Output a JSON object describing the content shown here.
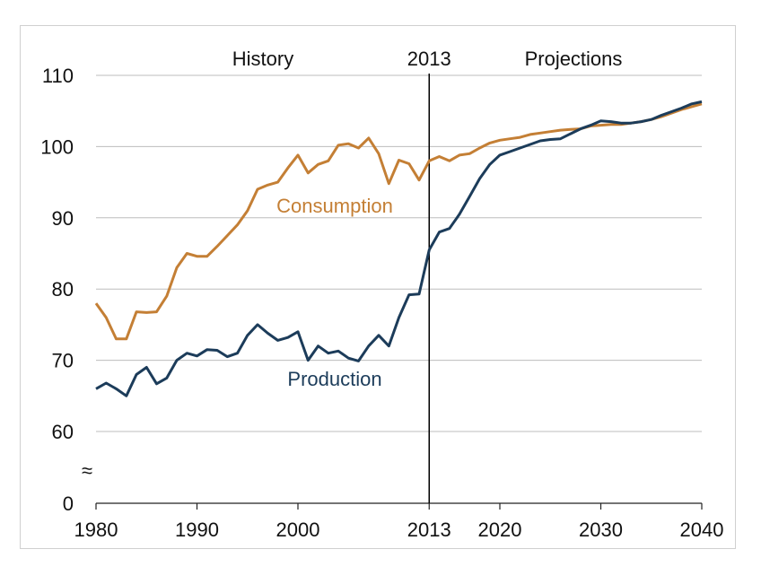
{
  "chart_data": {
    "type": "line",
    "title": "",
    "xlabel": "",
    "ylabel": "",
    "xlim": [
      1980,
      2040
    ],
    "yticks": [
      0,
      60,
      70,
      80,
      90,
      100,
      110
    ],
    "xticks": [
      "1980",
      "1990",
      "2000",
      "2013",
      "2020",
      "2030",
      "2040"
    ],
    "axis_break_symbol": "≈",
    "divider_year": 2013,
    "headers": {
      "history": "History",
      "divider": "2013",
      "projections": "Projections"
    },
    "colors": {
      "consumption": "#c47f35",
      "production": "#1c3c5a",
      "grid": "#bdbdbd",
      "divider": "#000000"
    },
    "series": [
      {
        "name": "Consumption",
        "key": "consumption",
        "x": [
          1980,
          1981,
          1982,
          1983,
          1984,
          1985,
          1986,
          1987,
          1988,
          1989,
          1990,
          1991,
          1992,
          1993,
          1994,
          1995,
          1996,
          1997,
          1998,
          1999,
          2000,
          2001,
          2002,
          2003,
          2004,
          2005,
          2006,
          2007,
          2008,
          2009,
          2010,
          2011,
          2012,
          2013,
          2014,
          2015,
          2016,
          2017,
          2018,
          2019,
          2020,
          2021,
          2022,
          2023,
          2024,
          2025,
          2026,
          2027,
          2028,
          2029,
          2030,
          2031,
          2032,
          2033,
          2034,
          2035,
          2036,
          2037,
          2038,
          2039,
          2040
        ],
        "values": [
          78.0,
          76.0,
          73.0,
          73.0,
          76.8,
          76.7,
          76.8,
          79.0,
          83.0,
          85.0,
          84.6,
          84.6,
          86.0,
          87.5,
          89.0,
          91.0,
          94.0,
          94.6,
          95.0,
          97.0,
          98.8,
          96.3,
          97.5,
          98.0,
          100.2,
          100.4,
          99.8,
          101.2,
          99.0,
          94.8,
          98.1,
          97.6,
          95.3,
          98.0,
          98.6,
          98.0,
          98.8,
          99.0,
          99.8,
          100.5,
          100.9,
          101.1,
          101.3,
          101.7,
          101.9,
          102.1,
          102.3,
          102.4,
          102.5,
          102.9,
          103.0,
          103.1,
          103.1,
          103.3,
          103.5,
          103.8,
          104.2,
          104.7,
          105.2,
          105.6,
          106.0
        ]
      },
      {
        "name": "Production",
        "key": "production",
        "x": [
          1980,
          1981,
          1982,
          1983,
          1984,
          1985,
          1986,
          1987,
          1988,
          1989,
          1990,
          1991,
          1992,
          1993,
          1994,
          1995,
          1996,
          1997,
          1998,
          1999,
          2000,
          2001,
          2002,
          2003,
          2004,
          2005,
          2006,
          2007,
          2008,
          2009,
          2010,
          2011,
          2012,
          2013,
          2014,
          2015,
          2016,
          2017,
          2018,
          2019,
          2020,
          2021,
          2022,
          2023,
          2024,
          2025,
          2026,
          2027,
          2028,
          2029,
          2030,
          2031,
          2032,
          2033,
          2034,
          2035,
          2036,
          2037,
          2038,
          2039,
          2040
        ],
        "values": [
          66.0,
          66.8,
          66.0,
          65.0,
          68.0,
          69.0,
          66.7,
          67.5,
          70.0,
          71.0,
          70.6,
          71.5,
          71.4,
          70.5,
          71.0,
          73.5,
          75.0,
          73.8,
          72.8,
          73.2,
          74.0,
          70.0,
          72.0,
          71.0,
          71.3,
          70.3,
          69.9,
          72.0,
          73.5,
          72.0,
          76.0,
          79.2,
          79.3,
          85.5,
          88.0,
          88.5,
          90.5,
          93.0,
          95.5,
          97.5,
          98.8,
          99.3,
          99.8,
          100.3,
          100.8,
          101.0,
          101.1,
          101.8,
          102.5,
          103.0,
          103.6,
          103.5,
          103.3,
          103.3,
          103.5,
          103.8,
          104.4,
          104.9,
          105.4,
          106.0,
          106.3
        ]
      }
    ],
    "labels": {
      "consumption": "Consumption",
      "production": "Production"
    }
  }
}
